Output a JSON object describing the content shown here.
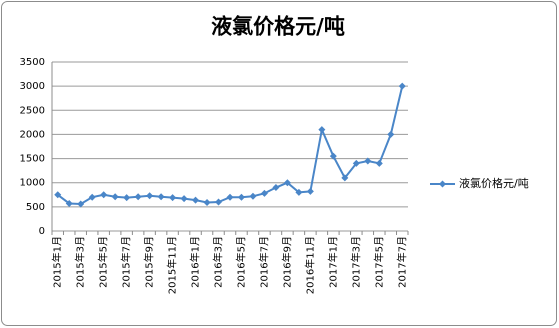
{
  "chart_data": {
    "type": "line",
    "title": "液氯价格元/吨",
    "categories": [
      "2015年1月",
      null,
      "2015年3月",
      null,
      "2015年5月",
      null,
      "2015年7月",
      null,
      "2015年9月",
      null,
      "2015年11月",
      null,
      "2016年1月",
      null,
      "2016年3月",
      null,
      "2016年5月",
      null,
      "2016年7月",
      null,
      "2016年9月",
      null,
      "2016年11月",
      null,
      "2017年1月",
      null,
      "2017年3月",
      null,
      "2017年5月",
      null,
      "2017年7月"
    ],
    "series": [
      {
        "name": "液氯价格元/吨",
        "color": "#4a86c8",
        "values": [
          750,
          570,
          560,
          700,
          750,
          710,
          690,
          710,
          730,
          710,
          690,
          670,
          640,
          590,
          600,
          700,
          700,
          720,
          780,
          900,
          1000,
          800,
          820,
          2100,
          1550,
          1100,
          1400,
          1450,
          1400,
          2000,
          3000
        ]
      }
    ],
    "ylim": [
      0,
      3500
    ],
    "yticks": [
      0,
      500,
      1000,
      1500,
      2000,
      2500,
      3000,
      3500
    ],
    "grid": true,
    "legend": "right"
  }
}
